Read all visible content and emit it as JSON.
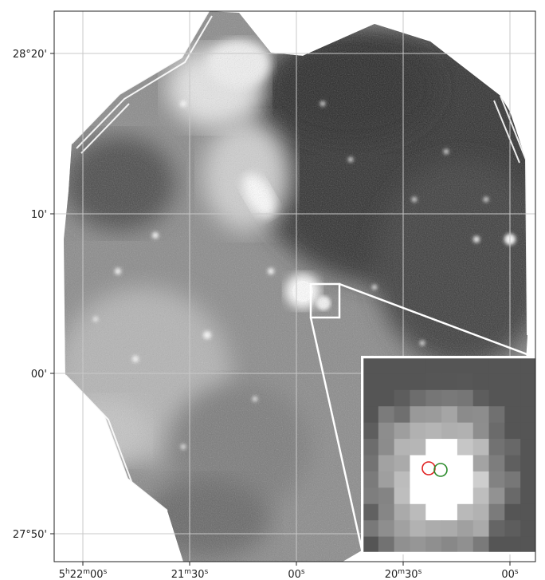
{
  "figure": {
    "y_ticks": [
      "28°20'",
      "10'",
      "00'",
      "27°50'"
    ],
    "x_ticks": [
      {
        "base": "5",
        "h": "h",
        "mid": "22",
        "m": "m",
        "sec": "00",
        "s": "s"
      },
      {
        "base": "",
        "h": "",
        "mid": "21",
        "m": "m",
        "sec": "30",
        "s": "s"
      },
      {
        "base": "",
        "h": "",
        "mid": "",
        "m": "",
        "sec": "00",
        "s": "s"
      },
      {
        "base": "",
        "h": "",
        "mid": "20",
        "m": "m",
        "sec": "30",
        "s": "s"
      },
      {
        "base": "",
        "h": "",
        "mid": "",
        "m": "",
        "sec": "00",
        "s": "s"
      }
    ],
    "colors": {
      "frame": "#222222",
      "grid": "#c8c8c8",
      "zoom_box": "#ffffff",
      "marker_red": "#e02020",
      "marker_green": "#2a8a2a"
    },
    "icons": {
      "marker_red": "circle-marker",
      "marker_green": "circle-marker"
    }
  }
}
